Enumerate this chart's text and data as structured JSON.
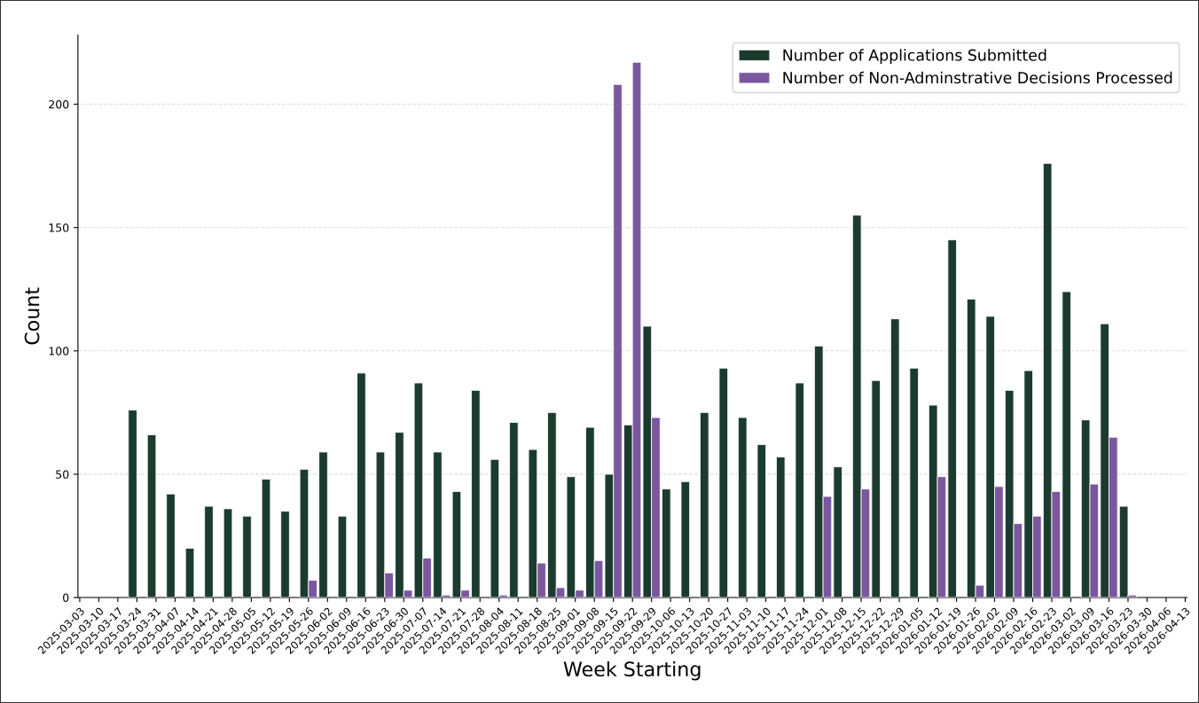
{
  "chart_data": {
    "type": "bar",
    "xlabel": "Week Starting",
    "ylabel": "Count",
    "categories": [
      "2025-03-03",
      "2025-03-10",
      "2025-03-17",
      "2025-03-24",
      "2025-03-31",
      "2025-04-07",
      "2025-04-14",
      "2025-04-21",
      "2025-04-28",
      "2025-05-05",
      "2025-05-12",
      "2025-05-19",
      "2025-05-26",
      "2025-06-02",
      "2025-06-09",
      "2025-06-16",
      "2025-06-23",
      "2025-06-30",
      "2025-07-07",
      "2025-07-14",
      "2025-07-21",
      "2025-07-28",
      "2025-08-04",
      "2025-08-11",
      "2025-08-18",
      "2025-08-25",
      "2025-09-01",
      "2025-09-08",
      "2025-09-15",
      "2025-09-22",
      "2025-09-29",
      "2025-10-06",
      "2025-10-13",
      "2025-10-20",
      "2025-10-27",
      "2025-11-03",
      "2025-11-10",
      "2025-11-17",
      "2025-11-24",
      "2025-12-01",
      "2025-12-08",
      "2025-12-15",
      "2025-12-22",
      "2025-12-29",
      "2026-01-05",
      "2026-01-12",
      "2026-01-19",
      "2026-01-26",
      "2026-02-02",
      "2026-02-09",
      "2026-02-16",
      "2026-02-23",
      "2026-03-02",
      "2026-03-09",
      "2026-03-16",
      "2026-03-23",
      "2026-03-30",
      "2026-04-06",
      "2026-04-13"
    ],
    "series": [
      {
        "name": "Number of Applications Submitted",
        "color": "#1c3b2f",
        "values": [
          null,
          null,
          null,
          76,
          66,
          42,
          20,
          37,
          36,
          33,
          48,
          35,
          52,
          59,
          33,
          91,
          59,
          67,
          87,
          59,
          43,
          84,
          56,
          71,
          60,
          75,
          49,
          69,
          50,
          70,
          110,
          44,
          47,
          75,
          93,
          73,
          62,
          57,
          87,
          102,
          53,
          155,
          88,
          113,
          93,
          78,
          145,
          121,
          114,
          84,
          92,
          176,
          124,
          72,
          111,
          37,
          null,
          null,
          null
        ]
      },
      {
        "name": "Number of Non-Adminstrative Decisions Processed",
        "color": "#7b57a0",
        "values": [
          null,
          null,
          null,
          null,
          null,
          null,
          null,
          null,
          null,
          null,
          null,
          null,
          7,
          null,
          null,
          null,
          10,
          3,
          16,
          1,
          3,
          null,
          1,
          null,
          14,
          4,
          3,
          15,
          208,
          217,
          73,
          null,
          null,
          null,
          null,
          null,
          null,
          null,
          null,
          41,
          null,
          44,
          null,
          null,
          null,
          49,
          null,
          5,
          45,
          30,
          33,
          43,
          null,
          46,
          65,
          1,
          null,
          null,
          null
        ]
      }
    ],
    "ylim": [
      0,
      228
    ],
    "yticks": [
      0,
      50,
      100,
      150,
      200
    ],
    "grid": "y",
    "legend": "top right"
  }
}
